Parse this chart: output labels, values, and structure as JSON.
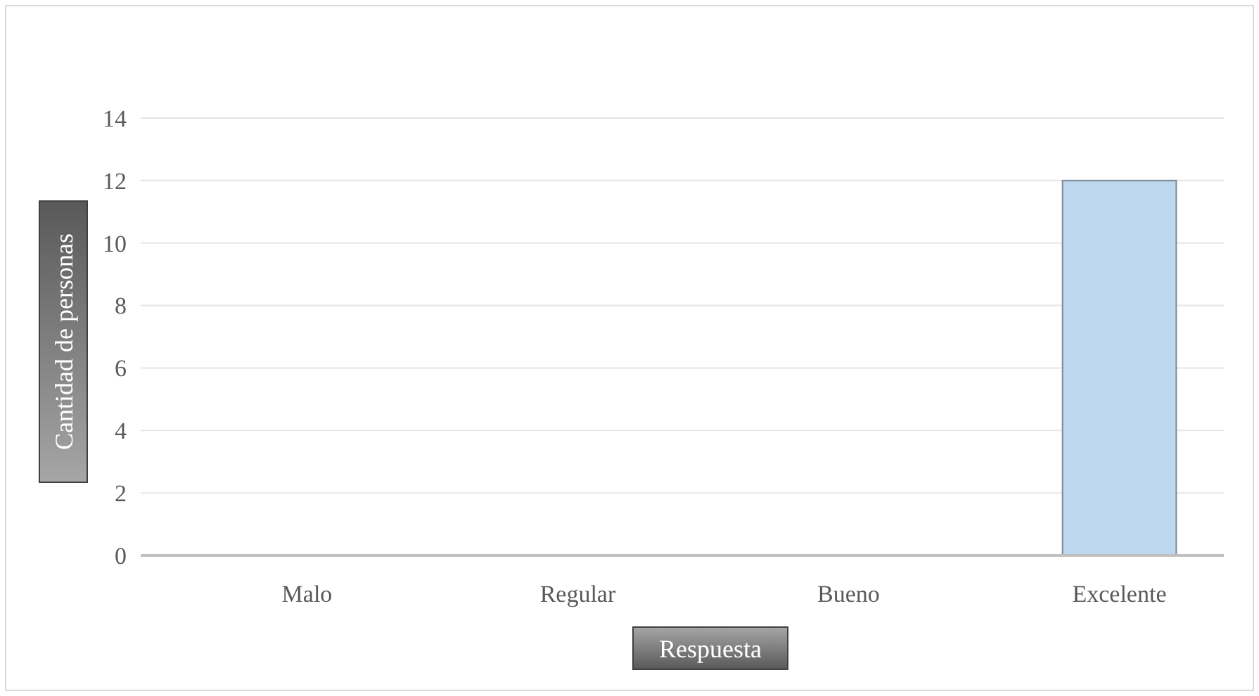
{
  "chart_data": {
    "type": "bar",
    "xlabel": "Respuesta",
    "ylabel": "Cantidad de personas",
    "categories": [
      "Malo",
      "Regular",
      "Bueno",
      "Excelente"
    ],
    "values": [
      0,
      0,
      0,
      12
    ],
    "color": "#bdd7ee",
    "ylim": [
      0,
      14
    ],
    "yticks": [
      0,
      2,
      4,
      6,
      8,
      10,
      12,
      14
    ],
    "grid": "y"
  }
}
